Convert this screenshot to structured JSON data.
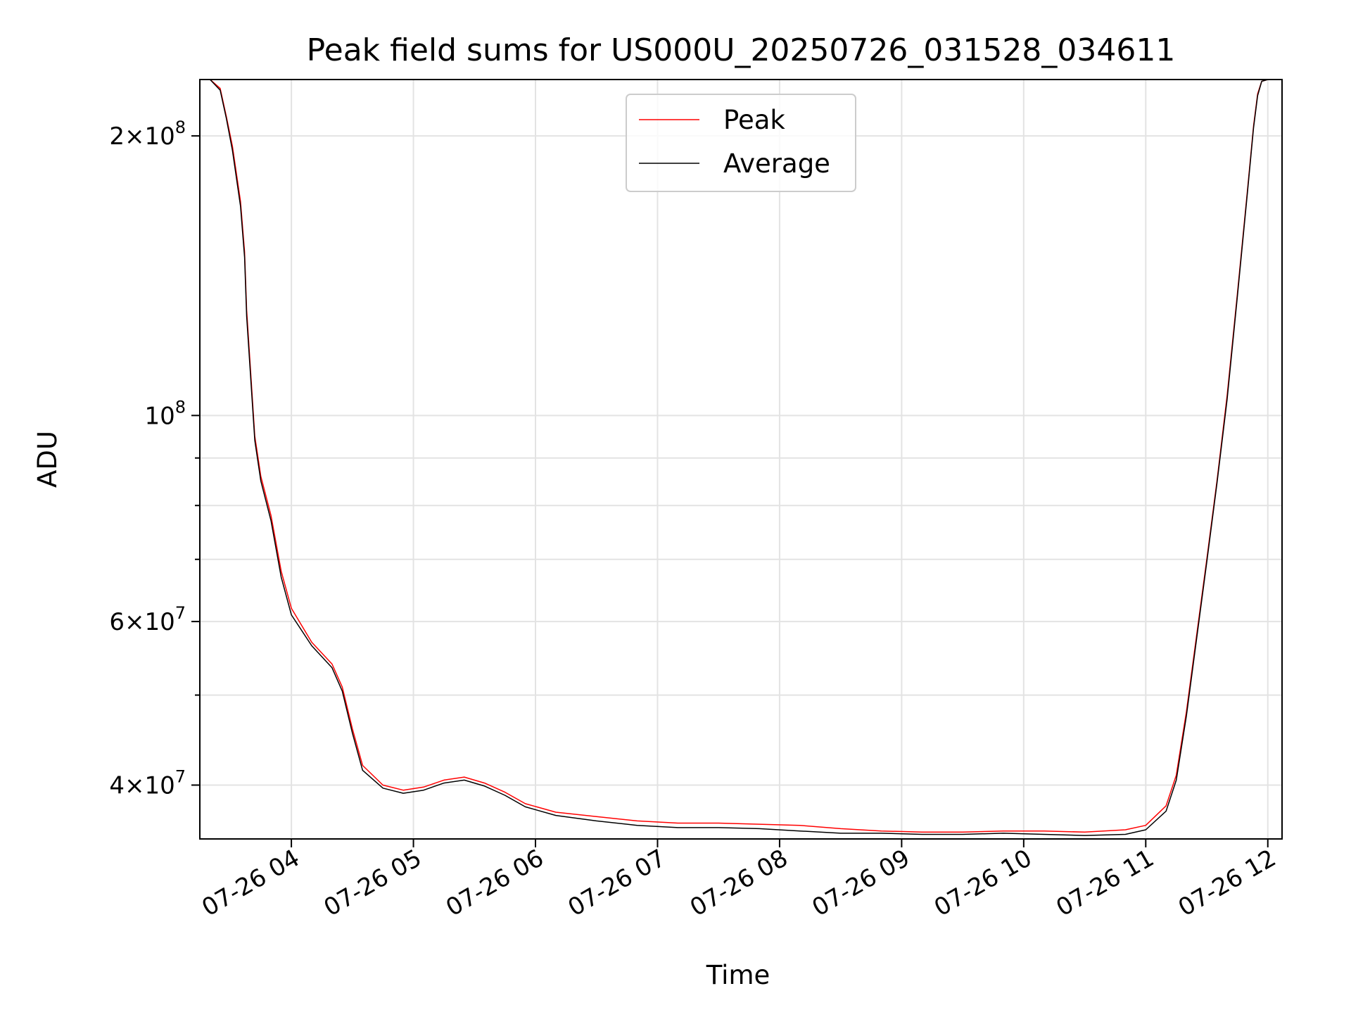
{
  "chart_data": {
    "type": "line",
    "title": "Peak field sums for US000U_20250726_031528_034611",
    "xlabel": "Time",
    "ylabel": "ADU",
    "y_scale": "log",
    "grid": true,
    "legend_placement": "upper center",
    "xlim": [
      "07-26 03:15",
      "07-26 12:07"
    ],
    "ylim": [
      35000000,
      230000000
    ],
    "x_ticks": [
      {
        "value": "07-26 04:00",
        "label": "07-26 04"
      },
      {
        "value": "07-26 05:00",
        "label": "07-26 05"
      },
      {
        "value": "07-26 06:00",
        "label": "07-26 06"
      },
      {
        "value": "07-26 07:00",
        "label": "07-26 07"
      },
      {
        "value": "07-26 08:00",
        "label": "07-26 08"
      },
      {
        "value": "07-26 09:00",
        "label": "07-26 09"
      },
      {
        "value": "07-26 10:00",
        "label": "07-26 10"
      },
      {
        "value": "07-26 11:00",
        "label": "07-26 11"
      },
      {
        "value": "07-26 12:00",
        "label": "07-26 12"
      }
    ],
    "y_major_ticks": [
      {
        "value": 40000000,
        "mantissa": "4",
        "base": "10",
        "exponent": "7"
      },
      {
        "value": 60000000,
        "mantissa": "6",
        "base": "10",
        "exponent": "7"
      },
      {
        "value": 100000000,
        "mantissa": "",
        "base": "10",
        "exponent": "8"
      },
      {
        "value": 200000000,
        "mantissa": "2",
        "base": "10",
        "exponent": "8"
      }
    ],
    "y_minor_ticks": [
      50000000,
      70000000,
      80000000,
      90000000
    ],
    "series": [
      {
        "name": "Peak",
        "color": "#ff0000",
        "x": [
          "07-26 03:15",
          "07-26 03:20",
          "07-26 03:25",
          "07-26 03:28",
          "07-26 03:31",
          "07-26 03:35",
          "07-26 03:37",
          "07-26 03:38",
          "07-26 03:42",
          "07-26 03:45",
          "07-26 03:50",
          "07-26 03:55",
          "07-26 04:00",
          "07-26 04:10",
          "07-26 04:20",
          "07-26 04:25",
          "07-26 04:30",
          "07-26 04:35",
          "07-26 04:45",
          "07-26 04:55",
          "07-26 05:05",
          "07-26 05:15",
          "07-26 05:25",
          "07-26 05:35",
          "07-26 05:45",
          "07-26 05:55",
          "07-26 06:10",
          "07-26 06:30",
          "07-26 06:50",
          "07-26 07:10",
          "07-26 07:30",
          "07-26 07:50",
          "07-26 08:10",
          "07-26 08:30",
          "07-26 08:50",
          "07-26 09:10",
          "07-26 09:30",
          "07-26 09:50",
          "07-26 10:10",
          "07-26 10:30",
          "07-26 10:50",
          "07-26 11:00",
          "07-26 11:10",
          "07-26 11:15",
          "07-26 11:20",
          "07-26 11:25",
          "07-26 11:30",
          "07-26 11:35",
          "07-26 11:40",
          "07-26 11:45",
          "07-26 11:50",
          "07-26 11:53",
          "07-26 11:55",
          "07-26 11:57",
          "07-26 12:00",
          "07-26 12:07"
        ],
        "y": [
          230000000,
          230000000,
          225000000,
          210000000,
          195000000,
          170000000,
          150000000,
          130000000,
          95000000,
          86000000,
          78000000,
          68000000,
          62000000,
          57000000,
          54000000,
          51000000,
          46000000,
          42000000,
          40000000,
          39500000,
          39800000,
          40500000,
          40800000,
          40200000,
          39300000,
          38200000,
          37400000,
          37000000,
          36600000,
          36400000,
          36400000,
          36300000,
          36200000,
          35900000,
          35700000,
          35600000,
          35600000,
          35700000,
          35700000,
          35600000,
          35800000,
          36200000,
          38000000,
          41000000,
          48000000,
          58000000,
          70000000,
          85000000,
          105000000,
          135000000,
          175000000,
          205000000,
          222000000,
          229000000,
          230000000,
          230000000
        ]
      },
      {
        "name": "Average",
        "color": "#000000",
        "x": [
          "07-26 03:15",
          "07-26 03:20",
          "07-26 03:25",
          "07-26 03:28",
          "07-26 03:31",
          "07-26 03:35",
          "07-26 03:37",
          "07-26 03:38",
          "07-26 03:42",
          "07-26 03:45",
          "07-26 03:50",
          "07-26 03:55",
          "07-26 04:00",
          "07-26 04:10",
          "07-26 04:20",
          "07-26 04:25",
          "07-26 04:30",
          "07-26 04:35",
          "07-26 04:45",
          "07-26 04:55",
          "07-26 05:05",
          "07-26 05:15",
          "07-26 05:25",
          "07-26 05:35",
          "07-26 05:45",
          "07-26 05:55",
          "07-26 06:10",
          "07-26 06:30",
          "07-26 06:50",
          "07-26 07:10",
          "07-26 07:30",
          "07-26 07:50",
          "07-26 08:10",
          "07-26 08:30",
          "07-26 08:50",
          "07-26 09:10",
          "07-26 09:30",
          "07-26 09:50",
          "07-26 10:10",
          "07-26 10:30",
          "07-26 10:50",
          "07-26 11:00",
          "07-26 11:10",
          "07-26 11:15",
          "07-26 11:20",
          "07-26 11:25",
          "07-26 11:30",
          "07-26 11:35",
          "07-26 11:40",
          "07-26 11:45",
          "07-26 11:50",
          "07-26 11:53",
          "07-26 11:55",
          "07-26 11:57",
          "07-26 12:00",
          "07-26 12:07"
        ],
        "y": [
          230000000,
          230000000,
          224000000,
          209000000,
          193000000,
          168000000,
          148000000,
          128000000,
          94000000,
          85000000,
          77000000,
          67000000,
          61000000,
          56500000,
          53500000,
          50500000,
          45500000,
          41500000,
          39700000,
          39200000,
          39500000,
          40200000,
          40500000,
          39900000,
          39000000,
          37900000,
          37100000,
          36600000,
          36200000,
          36000000,
          36000000,
          35900000,
          35700000,
          35500000,
          35500000,
          35400000,
          35400000,
          35500000,
          35400000,
          35300000,
          35400000,
          35800000,
          37500000,
          40500000,
          47500000,
          57500000,
          69500000,
          84500000,
          104000000,
          134000000,
          174000000,
          204000000,
          221000000,
          229000000,
          230000000,
          230000000
        ]
      }
    ],
    "legend": [
      {
        "label": "Peak",
        "color": "#ff0000"
      },
      {
        "label": "Average",
        "color": "#000000"
      }
    ]
  }
}
